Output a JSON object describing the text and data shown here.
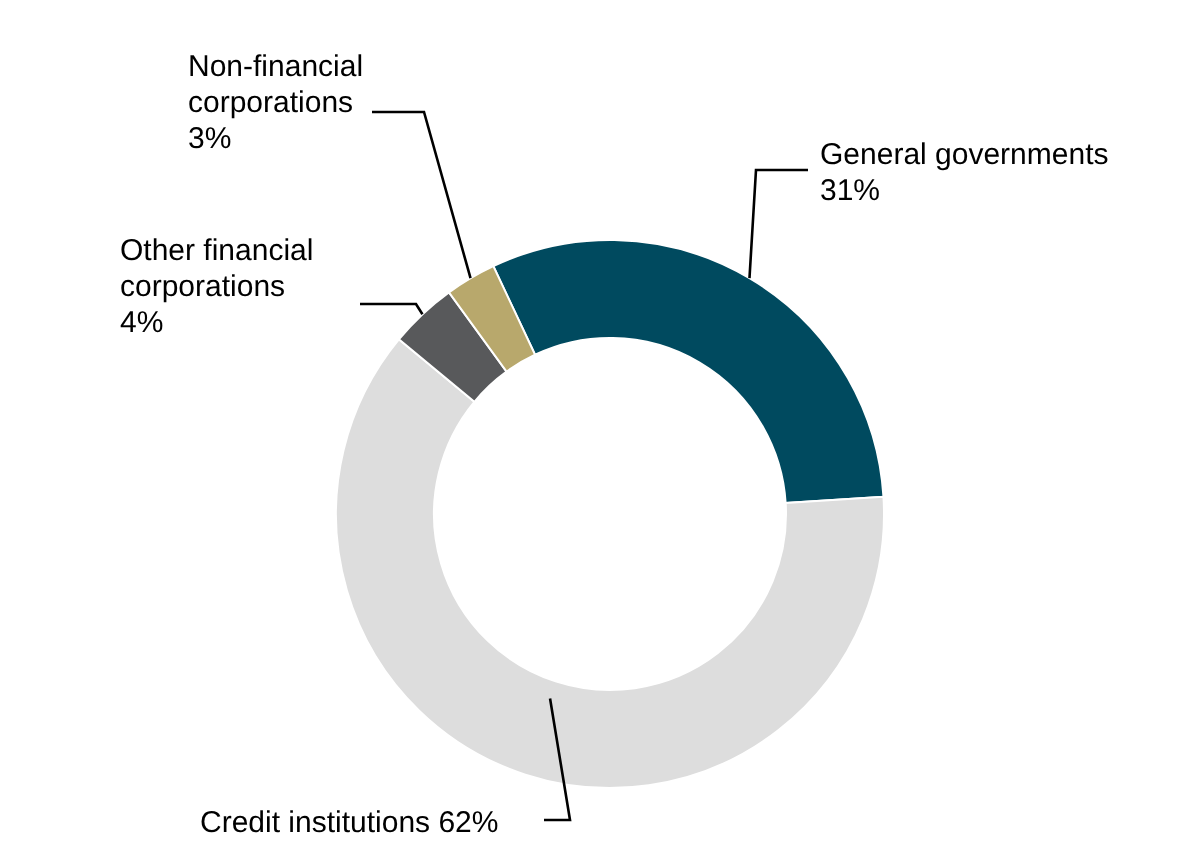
{
  "chart_data": {
    "type": "donut",
    "categories": [
      "General governments",
      "Credit institutions",
      "Other financial corporations",
      "Non-financial corporations"
    ],
    "values": [
      31,
      62,
      4,
      3
    ],
    "colors": [
      "#004a5f",
      "#dddddd",
      "#58595b",
      "#b8a86c"
    ],
    "value_labels": [
      "31%",
      "62%",
      "4%",
      "3%"
    ]
  }
}
